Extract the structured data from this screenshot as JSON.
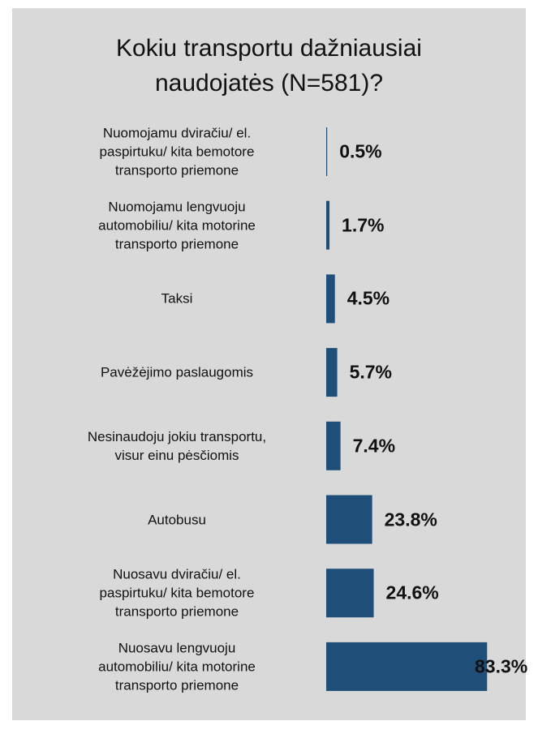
{
  "chart_data": {
    "type": "barh",
    "title": "Kokiu transportu dažniausiai\nnaudojatės (N=581)?",
    "categories": [
      "Nuomojamu dviračiu/ el.\npaspirtuku/ kita bemotore\ntransporto priemone",
      "Nuomojamu lengvuoju\nautomobiliu/ kita motorine\ntransporto priemone",
      "Taksi",
      "Pavėžėjimo paslaugomis",
      "Nesinaudoju jokiu transportu,\nvisur einu pėsčiomis",
      "Autobusu",
      "Nuosavu dviračiu/ el.\npaspirtuku/ kita bemotore\ntransporto priemone",
      "Nuosavu lengvuoju\nautomobiliu/ kita motorine\ntransporto priemone"
    ],
    "values": [
      0.5,
      1.7,
      4.5,
      5.7,
      7.4,
      23.8,
      24.6,
      83.3
    ],
    "value_labels": [
      "0.5%",
      "1.7%",
      "4.5%",
      "5.7%",
      "7.4%",
      "23.8%",
      "24.6%",
      "83.3%"
    ],
    "color": "#1f4e79",
    "xlim": [
      0,
      100
    ]
  }
}
